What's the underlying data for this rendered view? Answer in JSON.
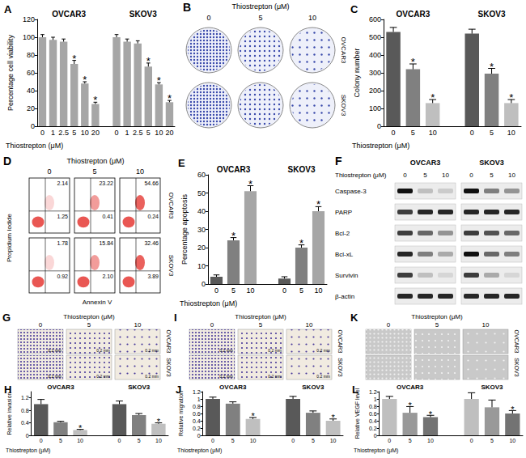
{
  "chart_data": [
    {
      "type": "bar",
      "title": "A",
      "ylabel": "Percentage cell viability",
      "xlabel": "Thiostrepton (μM)",
      "categories": [
        "0",
        "1",
        "2.5",
        "5",
        "10",
        "20"
      ],
      "color": "#a6a6a6",
      "series": [
        {
          "name": "OVCAR3",
          "values": [
            100,
            97,
            95,
            70,
            48,
            25
          ],
          "errors": [
            3,
            3,
            3,
            4,
            2,
            2
          ],
          "marks": [
            null,
            null,
            null,
            "*",
            "*",
            "*"
          ]
        },
        {
          "name": "SKOV3",
          "values": [
            100,
            95,
            93,
            67,
            47,
            27
          ],
          "errors": [
            3,
            3,
            3,
            4,
            2,
            2
          ],
          "marks": [
            null,
            null,
            null,
            "*",
            "*",
            "*"
          ]
        }
      ],
      "ylim": [
        0,
        120
      ],
      "yticks": [
        0,
        20,
        40,
        60,
        80,
        100,
        120
      ],
      "grid": false
    },
    {
      "type": "bar",
      "title": "C",
      "ylabel": "Colony number",
      "xlabel": "Thiostrepton (μM)",
      "categories": [
        "0",
        "5",
        "10"
      ],
      "colors": [
        "#595959",
        "#808080",
        "#bfbfbf"
      ],
      "series": [
        {
          "name": "OVCAR3",
          "values": [
            530,
            320,
            130
          ],
          "errors": [
            25,
            30,
            20
          ],
          "marks": [
            null,
            "*",
            "*"
          ]
        },
        {
          "name": "SKOV3",
          "values": [
            520,
            295,
            130
          ],
          "errors": [
            25,
            30,
            20
          ],
          "marks": [
            null,
            "*",
            "*"
          ]
        }
      ],
      "ylim": [
        0,
        600
      ],
      "yticks": [
        0,
        100,
        200,
        300,
        400,
        500,
        600
      ],
      "grid": false
    },
    {
      "type": "bar",
      "title": "E",
      "ylabel": "Percentage apoptosis",
      "xlabel": "Thiostrepton (μM)",
      "categories": [
        "0",
        "5",
        "10"
      ],
      "colors": [
        "#595959",
        "#808080",
        "#a6a6a6"
      ],
      "series": [
        {
          "name": "OVCAR3",
          "values": [
            4,
            24,
            51
          ],
          "errors": [
            1,
            1.5,
            3
          ],
          "marks": [
            null,
            "*",
            "*"
          ]
        },
        {
          "name": "SKOV3",
          "values": [
            3,
            20,
            40
          ],
          "errors": [
            1,
            1.5,
            2.5
          ],
          "marks": [
            null,
            "*",
            "*"
          ]
        }
      ],
      "ylim": [
        0,
        60
      ],
      "yticks": [
        0,
        10,
        20,
        30,
        40,
        50,
        60
      ],
      "grid": false
    },
    {
      "type": "bar",
      "title": "H",
      "ylabel": "Relative invasion",
      "xlabel": "Thiostrepton (μM)",
      "categories": [
        "0",
        "5",
        "10"
      ],
      "colors": [
        "#595959",
        "#808080",
        "#bfbfbf"
      ],
      "series": [
        {
          "name": "OVCAR3",
          "values": [
            1.0,
            0.42,
            0.17
          ],
          "errors": [
            0.15,
            0.03,
            0.02
          ],
          "marks": [
            null,
            null,
            "*"
          ]
        },
        {
          "name": "SKOV3",
          "values": [
            1.0,
            0.65,
            0.37
          ],
          "errors": [
            0.1,
            0.05,
            0.03
          ],
          "marks": [
            null,
            null,
            "*"
          ]
        }
      ],
      "ylim": [
        0,
        1.4
      ],
      "yticks": [
        0,
        0.4,
        0.8,
        1.2
      ],
      "grid": false
    },
    {
      "type": "bar",
      "title": "J",
      "ylabel": "Relative migration",
      "xlabel": "Thiostrepton (μM)",
      "categories": [
        "0",
        "5",
        "10"
      ],
      "colors": [
        "#595959",
        "#808080",
        "#bfbfbf"
      ],
      "series": [
        {
          "name": "OVCAR3",
          "values": [
            1.0,
            0.87,
            0.45
          ],
          "errors": [
            0.05,
            0.05,
            0.04
          ],
          "marks": [
            null,
            null,
            "*"
          ]
        },
        {
          "name": "SKOV3",
          "values": [
            1.0,
            0.62,
            0.4
          ],
          "errors": [
            0.07,
            0.05,
            0.05
          ],
          "marks": [
            null,
            null,
            "*"
          ]
        }
      ],
      "ylim": [
        0,
        1.2
      ],
      "yticks": [
        0,
        0.2,
        0.4,
        0.6,
        0.8,
        1,
        1.2
      ],
      "grid": false
    },
    {
      "type": "bar",
      "title": "L",
      "ylabel": "Relative VEGF level",
      "xlabel": "Thiostrepton (μM)",
      "categories": [
        "0",
        "5",
        "10"
      ],
      "colors": [
        "#bfbfbf",
        "#999999",
        "#737373"
      ],
      "series": [
        {
          "name": "OVCAR3",
          "values": [
            1.0,
            0.62,
            0.5
          ],
          "errors": [
            0.07,
            0.17,
            0.05
          ],
          "marks": [
            null,
            "*",
            "*"
          ]
        },
        {
          "name": "SKOV3",
          "values": [
            1.0,
            0.77,
            0.6
          ],
          "errors": [
            0.17,
            0.2,
            0.08
          ],
          "marks": [
            null,
            null,
            "*"
          ]
        }
      ],
      "ylim": [
        0,
        1.2
      ],
      "yticks": [
        0,
        0.2,
        0.4,
        0.6,
        0.8,
        1,
        1.2
      ],
      "grid": false
    }
  ],
  "panels": [
    {
      "type": "plates",
      "label": "B",
      "header": "Thiostrepton (μM)",
      "columns": [
        "0",
        "5",
        "10"
      ],
      "rows": [
        "OVCAR3",
        "SKOV3"
      ]
    },
    {
      "type": "flow",
      "label": "D",
      "header": "Thiostrepton (μM)",
      "columns": [
        "0",
        "5",
        "10"
      ],
      "rows": [
        "OVCAR3",
        "SKOV3"
      ],
      "ylabel": "Propidium Iodide",
      "xlabel": "Annexin V",
      "quadrants": [
        [
          {
            "upper_right": "2.14",
            "lower_right": "1.25"
          },
          {
            "upper_right": "23.22",
            "lower_right": "0.41"
          },
          {
            "upper_right": "54.66",
            "lower_right": "0.24"
          }
        ],
        [
          {
            "upper_right": "1.78",
            "lower_right": "0.92"
          },
          {
            "upper_right": "15.84",
            "lower_right": "2.10"
          },
          {
            "upper_right": "32.46",
            "lower_right": "3.89"
          }
        ]
      ]
    },
    {
      "type": "blot",
      "label": "F",
      "header": "Thiostrepton (μM)",
      "groups": [
        "OVCAR3",
        "SKOV3"
      ],
      "columns": [
        "0",
        "5",
        "10"
      ],
      "proteins": [
        {
          "name": "Caspase-3",
          "intensity": [
            1,
            0.2,
            0.15,
            1,
            0.5,
            0.4
          ]
        },
        {
          "name": "PARP",
          "intensity": [
            0.8,
            0.9,
            0.9,
            0.9,
            0.9,
            0.9
          ]
        },
        {
          "name": "Bcl-2",
          "intensity": [
            0.8,
            0.6,
            0.4,
            0.8,
            0.7,
            0.6
          ]
        },
        {
          "name": "Bcl-xL",
          "intensity": [
            0.9,
            0.5,
            0.3,
            1,
            0.6,
            0.5
          ]
        },
        {
          "name": "Survivin",
          "intensity": [
            0.8,
            0.2,
            0.1,
            0.8,
            0.3,
            0.1
          ]
        },
        {
          "name": "β-actin",
          "intensity": [
            0.9,
            0.9,
            0.9,
            0.9,
            0.9,
            0.9
          ]
        }
      ]
    },
    {
      "type": "micrographs",
      "label": "G",
      "header": "Thiostrepton (μM)",
      "columns": [
        "0",
        "5",
        "10"
      ],
      "rows": [
        "OVCAR3",
        "SKOV3"
      ],
      "scale": "0.2 mm"
    },
    {
      "type": "micrographs",
      "label": "I",
      "header": "Thiostrepton (μM)",
      "columns": [
        "0",
        "5",
        "10"
      ],
      "rows": [
        "OVCAR3",
        "SKOV3"
      ],
      "scale": "0.2 mm"
    },
    {
      "type": "micrographs",
      "label": "K",
      "header": "Thiostrepton (μM)",
      "columns": [
        "0",
        "5",
        "10"
      ],
      "rows": [
        "OVCAR3",
        "SKOV3"
      ]
    }
  ]
}
